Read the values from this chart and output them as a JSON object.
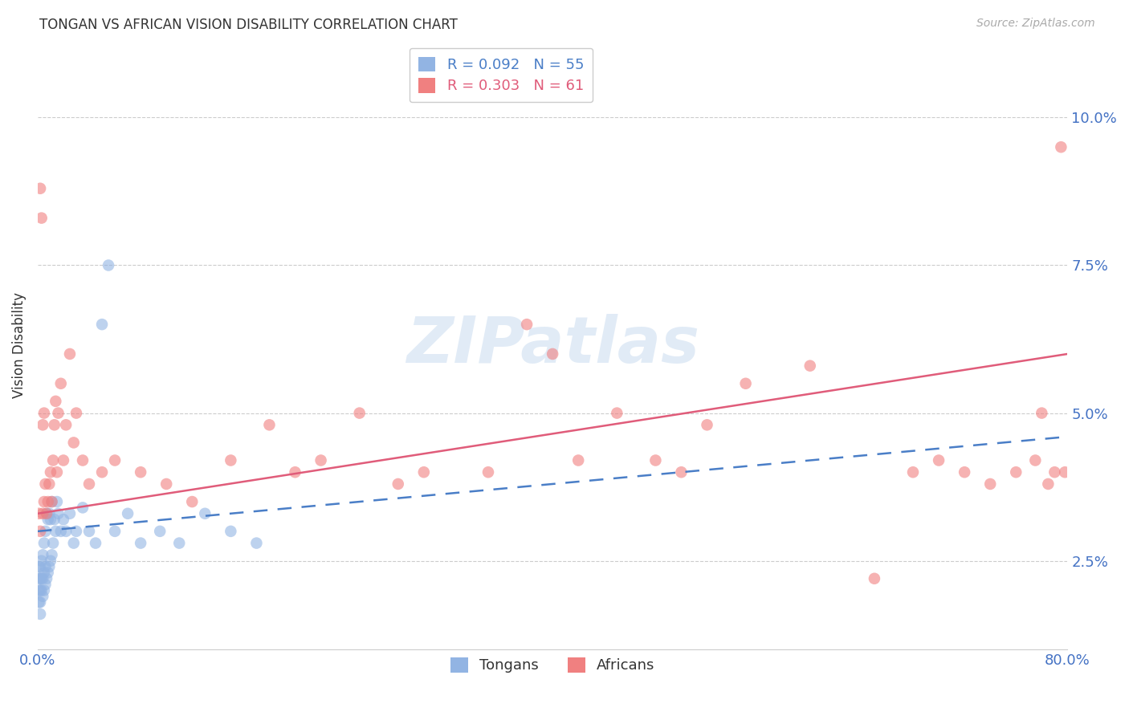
{
  "title": "TONGAN VS AFRICAN VISION DISABILITY CORRELATION CHART",
  "source": "Source: ZipAtlas.com",
  "ylabel": "Vision Disability",
  "ytick_values": [
    0.025,
    0.05,
    0.075,
    0.1
  ],
  "xlim": [
    0.0,
    0.8
  ],
  "ylim": [
    0.01,
    0.113
  ],
  "tongan_R": 0.092,
  "tongan_N": 55,
  "african_R": 0.303,
  "african_N": 61,
  "tongan_color": "#92b4e3",
  "african_color": "#f08080",
  "tongan_line_color": "#4a7ec7",
  "african_line_color": "#e05c7a",
  "background_color": "#ffffff",
  "grid_color": "#cccccc",
  "tick_color": "#4472c4",
  "tongan_x": [
    0.001,
    0.001,
    0.001,
    0.001,
    0.002,
    0.002,
    0.002,
    0.002,
    0.002,
    0.003,
    0.003,
    0.003,
    0.004,
    0.004,
    0.004,
    0.005,
    0.005,
    0.005,
    0.006,
    0.006,
    0.006,
    0.007,
    0.007,
    0.008,
    0.008,
    0.009,
    0.009,
    0.01,
    0.01,
    0.011,
    0.011,
    0.012,
    0.013,
    0.014,
    0.015,
    0.016,
    0.018,
    0.02,
    0.022,
    0.025,
    0.028,
    0.03,
    0.035,
    0.04,
    0.045,
    0.05,
    0.055,
    0.06,
    0.07,
    0.08,
    0.095,
    0.11,
    0.13,
    0.15,
    0.17
  ],
  "tongan_y": [
    0.018,
    0.02,
    0.022,
    0.024,
    0.016,
    0.018,
    0.02,
    0.022,
    0.024,
    0.02,
    0.022,
    0.025,
    0.019,
    0.022,
    0.026,
    0.02,
    0.023,
    0.028,
    0.021,
    0.024,
    0.03,
    0.022,
    0.033,
    0.023,
    0.032,
    0.024,
    0.033,
    0.025,
    0.032,
    0.026,
    0.035,
    0.028,
    0.032,
    0.03,
    0.035,
    0.033,
    0.03,
    0.032,
    0.03,
    0.033,
    0.028,
    0.03,
    0.034,
    0.03,
    0.028,
    0.065,
    0.075,
    0.03,
    0.033,
    0.028,
    0.03,
    0.028,
    0.033,
    0.03,
    0.028
  ],
  "african_x": [
    0.001,
    0.002,
    0.002,
    0.003,
    0.004,
    0.004,
    0.005,
    0.005,
    0.006,
    0.007,
    0.008,
    0.009,
    0.01,
    0.011,
    0.012,
    0.013,
    0.014,
    0.015,
    0.016,
    0.018,
    0.02,
    0.022,
    0.025,
    0.028,
    0.03,
    0.035,
    0.04,
    0.05,
    0.06,
    0.08,
    0.1,
    0.12,
    0.15,
    0.18,
    0.2,
    0.22,
    0.25,
    0.28,
    0.3,
    0.35,
    0.38,
    0.4,
    0.42,
    0.45,
    0.48,
    0.5,
    0.52,
    0.55,
    0.6,
    0.65,
    0.68,
    0.7,
    0.72,
    0.74,
    0.76,
    0.775,
    0.78,
    0.785,
    0.79,
    0.795,
    0.798
  ],
  "african_y": [
    0.033,
    0.03,
    0.088,
    0.083,
    0.033,
    0.048,
    0.035,
    0.05,
    0.038,
    0.033,
    0.035,
    0.038,
    0.04,
    0.035,
    0.042,
    0.048,
    0.052,
    0.04,
    0.05,
    0.055,
    0.042,
    0.048,
    0.06,
    0.045,
    0.05,
    0.042,
    0.038,
    0.04,
    0.042,
    0.04,
    0.038,
    0.035,
    0.042,
    0.048,
    0.04,
    0.042,
    0.05,
    0.038,
    0.04,
    0.04,
    0.065,
    0.06,
    0.042,
    0.05,
    0.042,
    0.04,
    0.048,
    0.055,
    0.058,
    0.022,
    0.04,
    0.042,
    0.04,
    0.038,
    0.04,
    0.042,
    0.05,
    0.038,
    0.04,
    0.095,
    0.04
  ],
  "african_line_x0": 0.0,
  "african_line_y0": 0.033,
  "african_line_x1": 0.8,
  "african_line_y1": 0.06,
  "tongan_line_x0": 0.0,
  "tongan_line_y0": 0.03,
  "tongan_line_x1": 0.8,
  "tongan_line_y1": 0.046
}
